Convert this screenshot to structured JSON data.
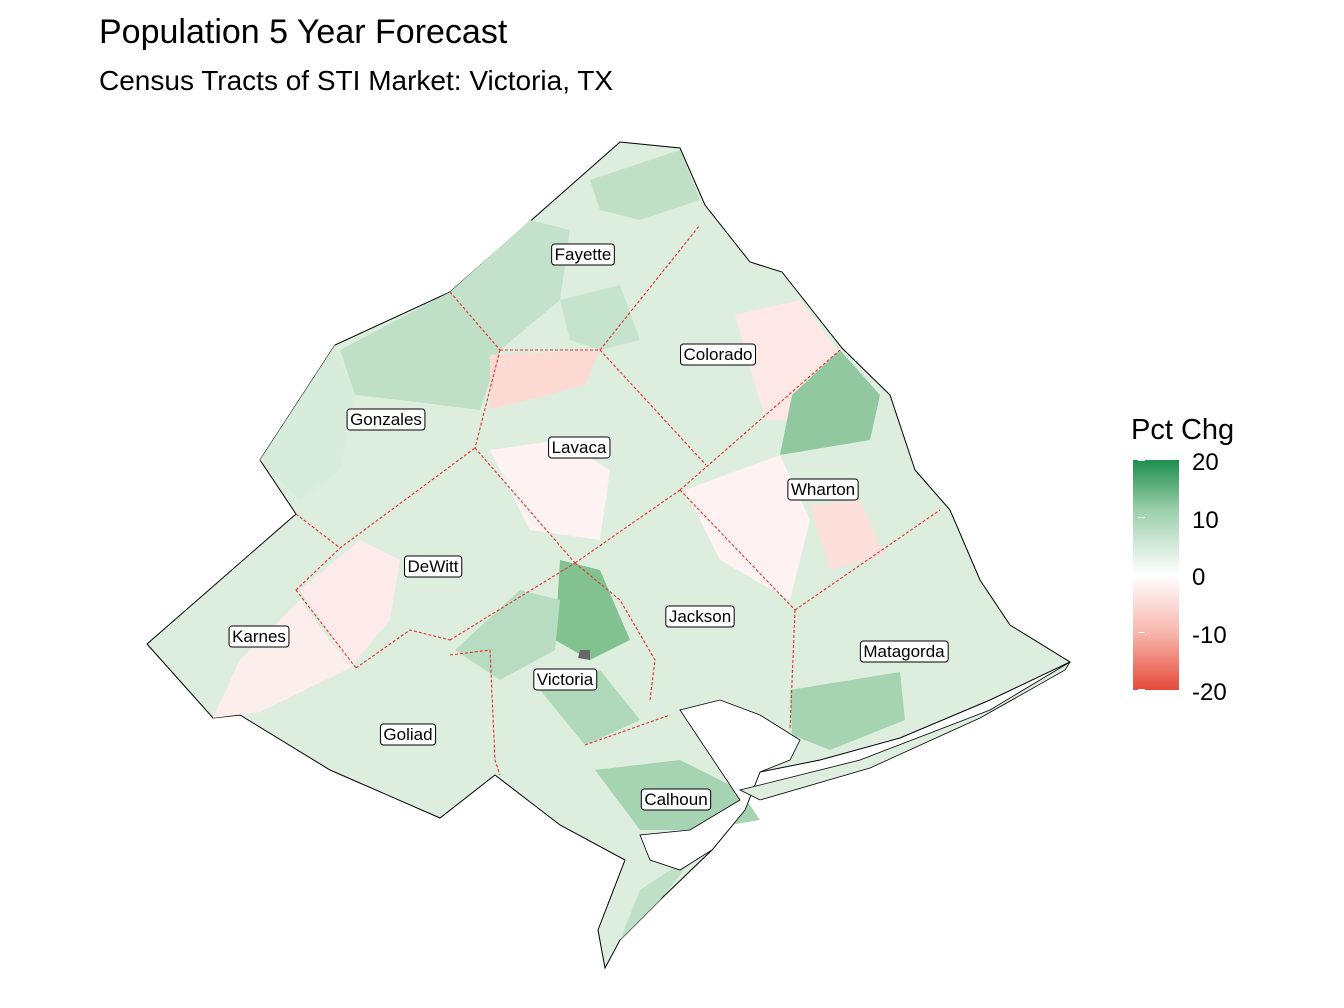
{
  "title": "Population 5 Year Forecast",
  "subtitle": "Census Tracts of STI Market: Victoria, TX",
  "legend": {
    "title": "Pct Chg",
    "ticks": [
      "20",
      "10",
      "0",
      "-10",
      "-20"
    ],
    "colors": {
      "high": "#1e8f4e",
      "mid": "#ffffff",
      "low": "#e44b3a"
    },
    "range": [
      -20,
      20
    ]
  },
  "counties": [
    {
      "name": "Fayette",
      "pct_chg": 6
    },
    {
      "name": "Colorado",
      "pct_chg": 2
    },
    {
      "name": "Gonzales",
      "pct_chg": 8
    },
    {
      "name": "Lavaca",
      "pct_chg": 2
    },
    {
      "name": "Wharton",
      "pct_chg": 1
    },
    {
      "name": "DeWitt",
      "pct_chg": 3
    },
    {
      "name": "Jackson",
      "pct_chg": 3
    },
    {
      "name": "Karnes",
      "pct_chg": 2
    },
    {
      "name": "Matagorda",
      "pct_chg": 6
    },
    {
      "name": "Victoria",
      "pct_chg": 9
    },
    {
      "name": "Goliad",
      "pct_chg": 5
    },
    {
      "name": "Calhoun",
      "pct_chg": 10
    }
  ]
}
